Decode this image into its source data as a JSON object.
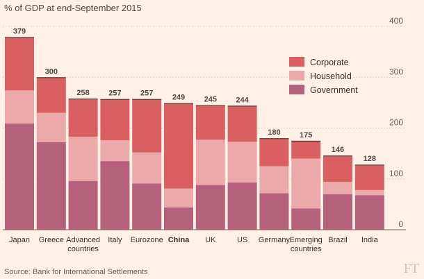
{
  "header": {
    "subtitle": "% of GDP at end-September 2015"
  },
  "footer": {
    "source": "Source: Bank for International Settlements",
    "logo": "FT"
  },
  "chart_data": {
    "type": "bar",
    "stacked": true,
    "title": "",
    "subtitle": "% of GDP at end-September 2015",
    "xlabel": "",
    "ylabel": "",
    "ylim": [
      0,
      400
    ],
    "yticks": [
      0,
      100,
      200,
      300,
      400
    ],
    "grid": true,
    "legend_position": "top-right",
    "categories": [
      "Japan",
      "Greece",
      "Advanced countries",
      "Italy",
      "Eurozone",
      "China",
      "UK",
      "US",
      "Germany",
      "Emerging countries",
      "Brazil",
      "India"
    ],
    "category_lines": [
      [
        "Japan"
      ],
      [
        "Greece"
      ],
      [
        "Advanced",
        "countries"
      ],
      [
        "Italy"
      ],
      [
        "Eurozone"
      ],
      [
        "China"
      ],
      [
        "UK"
      ],
      [
        "US"
      ],
      [
        "Germany"
      ],
      [
        "Emerging",
        "countries"
      ],
      [
        "Brazil"
      ],
      [
        "India"
      ]
    ],
    "highlight_category": "China",
    "totals": [
      379,
      300,
      258,
      257,
      257,
      249,
      245,
      244,
      180,
      175,
      146,
      128
    ],
    "series": [
      {
        "name": "Government",
        "color": "#b5617b",
        "values": [
          209,
          172,
          96,
          135,
          91,
          44,
          88,
          93,
          72,
          42,
          70,
          68
        ]
      },
      {
        "name": "Household",
        "color": "#eca9a9",
        "values": [
          65,
          58,
          87,
          41,
          61,
          37,
          89,
          80,
          53,
          98,
          24,
          10
        ]
      },
      {
        "name": "Corporate",
        "color": "#d95f61",
        "values": [
          105,
          70,
          75,
          81,
          105,
          168,
          68,
          71,
          55,
          35,
          52,
          50
        ]
      }
    ],
    "legend_order": [
      "Corporate",
      "Household",
      "Government"
    ]
  }
}
